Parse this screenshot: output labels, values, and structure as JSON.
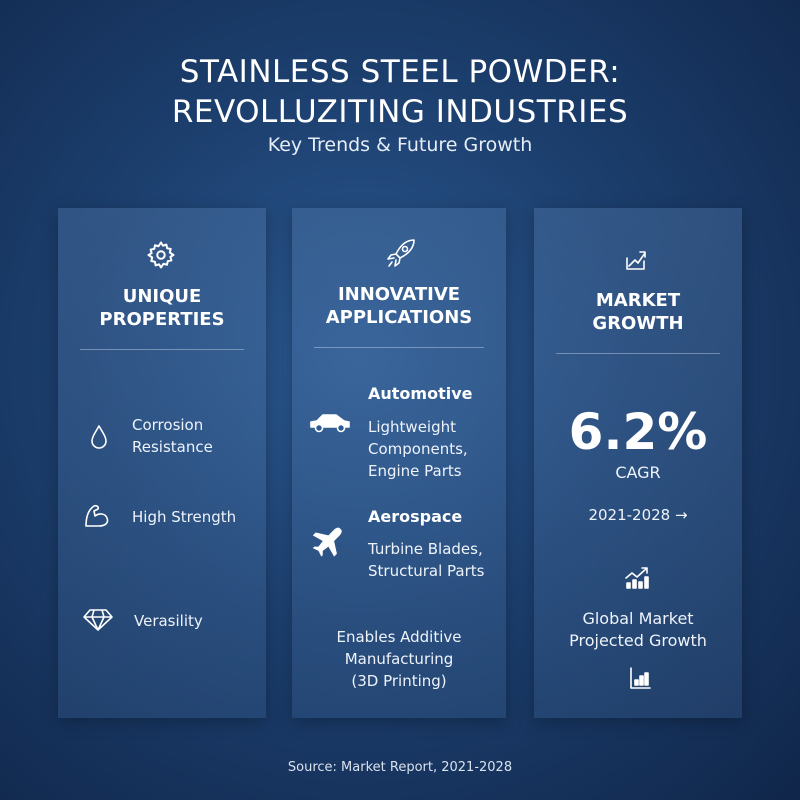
{
  "header": {
    "title_line1": "STAINLESS STEEL POWDER:",
    "title_line2": "REVOLLUZITING INDUSTRIES",
    "subtitle": "Key Trends & Future Growth"
  },
  "panels": [
    {
      "icon": "gear-icon",
      "title_line1": "UNIQUE",
      "title_line2": "PROPERTIES",
      "items": [
        {
          "icon": "water-drop-icon",
          "line1": "Corrosion",
          "line2": "Resistance"
        },
        {
          "icon": "flexed-arm-icon",
          "line1": "High Strength"
        },
        {
          "icon": "diamond-icon",
          "line1": "Verasility"
        }
      ]
    },
    {
      "icon": "rocket-icon",
      "title_line1": "INNOVATIVE",
      "title_line2": "APPLICATIONS",
      "items": [
        {
          "icon": "car-icon",
          "heading": "Automotive",
          "line1": "Lightweight Components,",
          "line2": "Engine Parts"
        },
        {
          "icon": "airplane-icon",
          "heading": "Aerospace",
          "line1": "Turbine Blades,",
          "line2": "Structural Parts"
        }
      ],
      "footer_line1": "Enables Additive",
      "footer_line2": "Manufacturing",
      "footer_line3": "(3D Printing)"
    },
    {
      "icon": "trend-up-icon",
      "title_line1": "MARKET",
      "title_line2": "GROWTH",
      "value": "6.2%",
      "value_label": "CAGR",
      "period": "2021-2028 →",
      "chart_icon": "growth-chart-icon",
      "note_line1": "Global Market",
      "note_line2": "Projected Growth",
      "bottom_icon": "bar-chart-icon"
    }
  ],
  "footer": {
    "source": "Source: Market Report, 2021-2028"
  }
}
